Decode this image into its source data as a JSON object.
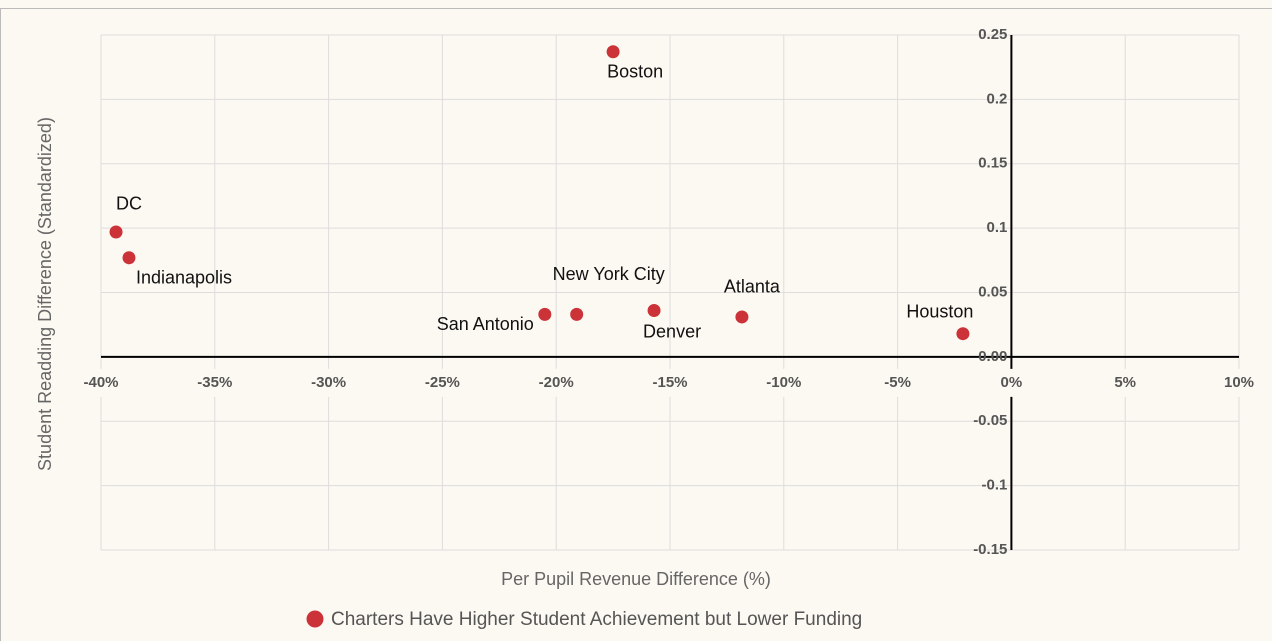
{
  "chart_data": {
    "type": "scatter",
    "xlabel": "Per Pupil Revenue Difference (%)",
    "ylabel": "Student Readding Difference (Standardized)",
    "series": [
      {
        "name": "Charters Have Higher Student Achievement but Lower Funding",
        "color": "#cc3338",
        "labels": [
          "DC",
          "Indianapolis",
          "Boston",
          "San Antonio",
          "New York City",
          "Denver",
          "Atlanta",
          "Houston"
        ],
        "x": [
          -39.34,
          -38.77,
          -17.5,
          -20.5,
          -19.1,
          -15.7,
          -11.84,
          -2.13
        ],
        "values": [
          0.097,
          0.077,
          0.237,
          0.033,
          0.033,
          0.036,
          0.031,
          0.018
        ]
      }
    ],
    "xlim": [
      -40,
      10
    ],
    "xticks": [
      {
        "value": -40,
        "label": "-40%"
      },
      {
        "value": -35,
        "label": "-35%"
      },
      {
        "value": -30,
        "label": "-30%"
      },
      {
        "value": -25,
        "label": "-25%"
      },
      {
        "value": -20,
        "label": "-20%"
      },
      {
        "value": -15,
        "label": "-15%"
      },
      {
        "value": -10,
        "label": "-10%"
      },
      {
        "value": -5,
        "label": "-5%"
      },
      {
        "value": 0,
        "label": "0%"
      },
      {
        "value": 5,
        "label": "5%"
      },
      {
        "value": 10,
        "label": "10%"
      }
    ],
    "ylim": [
      -0.15,
      0.25
    ],
    "yticks": [
      0.25,
      0.2,
      0.15,
      0.1,
      0.05,
      {
        "value": 0,
        "label": "0.00"
      },
      -0.05,
      -0.1,
      -0.15
    ],
    "grid": true
  }
}
